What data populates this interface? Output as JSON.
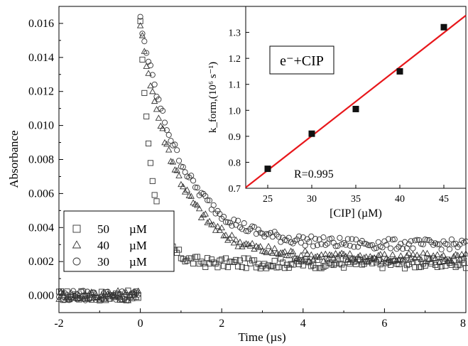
{
  "chart_data": [
    {
      "type": "scatter",
      "title": "",
      "xlabel": "Time (µs)",
      "ylabel": "Absorbance",
      "xlim": [
        -2,
        8
      ],
      "ylim": [
        -0.001,
        0.017
      ],
      "x_ticks": [
        "-2",
        "0",
        "2",
        "4",
        "6",
        "8"
      ],
      "y_ticks": [
        "0.000",
        "0.002",
        "0.004",
        "0.006",
        "0.008",
        "0.010",
        "0.012",
        "0.014",
        "0.016"
      ],
      "legend": {
        "position": "bottom-left",
        "unit": "µM"
      },
      "series": [
        {
          "name": "50",
          "marker": "square",
          "baseline": 0.0,
          "peak": 0.0162,
          "decay_rate": 3.5,
          "plateau": 0.0019,
          "noise": 0.0003
        },
        {
          "name": "40",
          "marker": "triangle",
          "baseline": 0.0,
          "peak": 0.0158,
          "decay_rate": 1.1,
          "plateau": 0.0022,
          "noise": 0.0003
        },
        {
          "name": "30",
          "marker": "circle",
          "baseline": 0.0,
          "peak": 0.0162,
          "decay_rate": 1.0,
          "plateau": 0.003,
          "noise": 0.0003
        }
      ]
    },
    {
      "type": "scatter",
      "title": "",
      "annotation": "e⁻+CIP",
      "xlabel": "[CIP] (µM)",
      "ylabel": "k_form,(10⁶ s⁻¹)",
      "xlim": [
        22.5,
        47.5
      ],
      "ylim": [
        0.7,
        1.4
      ],
      "x_ticks": [
        "25",
        "30",
        "35",
        "40",
        "45"
      ],
      "y_ticks": [
        "0.7",
        "0.8",
        "0.9",
        "1.0",
        "1.1",
        "1.2",
        "1.3"
      ],
      "points": {
        "x": [
          25,
          30,
          35,
          40,
          45
        ],
        "y": [
          0.775,
          0.91,
          1.005,
          1.15,
          1.32
        ]
      },
      "fit": {
        "x": [
          22.5,
          47.5
        ],
        "y": [
          0.703,
          1.365
        ],
        "color": "#e8171b"
      },
      "r_label": "R=0.995"
    }
  ]
}
